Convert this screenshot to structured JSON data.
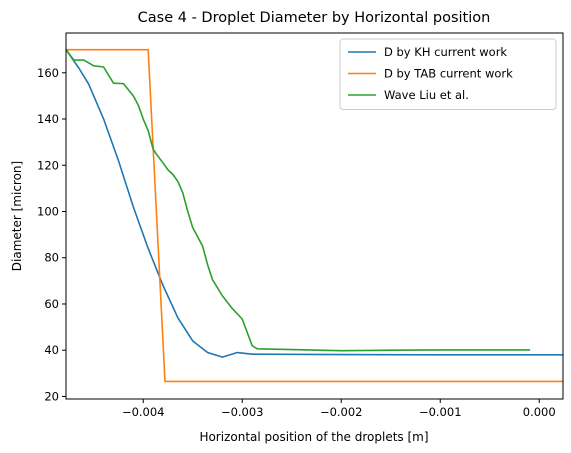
{
  "chart_data": {
    "type": "line",
    "title": "Case 4 - Droplet Diameter by Horizontal position",
    "xlabel": "Horizontal position of the droplets [m]",
    "ylabel": "Diameter [micron]",
    "xlim": [
      -0.00478,
      0.00024
    ],
    "ylim": [
      18.9,
      177.2
    ],
    "xticks": [
      {
        "value": -0.004,
        "label": "−0.004"
      },
      {
        "value": -0.003,
        "label": "−0.003"
      },
      {
        "value": -0.002,
        "label": "−0.002"
      },
      {
        "value": -0.001,
        "label": "−0.001"
      },
      {
        "value": 0.0,
        "label": "0.000"
      }
    ],
    "yticks": [
      {
        "value": 20,
        "label": "20"
      },
      {
        "value": 40,
        "label": "40"
      },
      {
        "value": 60,
        "label": "60"
      },
      {
        "value": 80,
        "label": "80"
      },
      {
        "value": 100,
        "label": "100"
      },
      {
        "value": 120,
        "label": "120"
      },
      {
        "value": 140,
        "label": "140"
      },
      {
        "value": 160,
        "label": "160"
      }
    ],
    "grid": false,
    "legend_position": "top-right",
    "series": [
      {
        "name": "D by KH current work",
        "color": "#1f77b4",
        "points": [
          [
            -0.00478,
            170
          ],
          [
            -0.00465,
            162
          ],
          [
            -0.00455,
            155
          ],
          [
            -0.0044,
            140
          ],
          [
            -0.00425,
            122
          ],
          [
            -0.0041,
            102
          ],
          [
            -0.00395,
            84
          ],
          [
            -0.0038,
            68
          ],
          [
            -0.00365,
            54
          ],
          [
            -0.0035,
            44
          ],
          [
            -0.00335,
            39
          ],
          [
            -0.0032,
            37
          ],
          [
            -0.00305,
            39
          ],
          [
            -0.0029,
            38.3
          ],
          [
            -0.002,
            38.1
          ],
          [
            -0.001,
            38.0
          ],
          [
            0.00024,
            38.0
          ]
        ]
      },
      {
        "name": "D by TAB current work",
        "color": "#ff7f0e",
        "points": [
          [
            -0.00478,
            170
          ],
          [
            -0.00395,
            170
          ],
          [
            -0.00378,
            26.5
          ],
          [
            0.00024,
            26.5
          ]
        ]
      },
      {
        "name": "Wave Liu et al.",
        "color": "#2ca02c",
        "points": [
          [
            -0.00478,
            170
          ],
          [
            -0.0047,
            165.5
          ],
          [
            -0.0046,
            165.5
          ],
          [
            -0.0045,
            163
          ],
          [
            -0.0044,
            162.5
          ],
          [
            -0.0043,
            155.5
          ],
          [
            -0.0042,
            155.3
          ],
          [
            -0.0041,
            150
          ],
          [
            -0.00405,
            146
          ],
          [
            -0.004,
            140
          ],
          [
            -0.00395,
            135
          ],
          [
            -0.0039,
            127
          ],
          [
            -0.00387,
            125
          ],
          [
            -0.0038,
            121
          ],
          [
            -0.00375,
            118
          ],
          [
            -0.0037,
            116
          ],
          [
            -0.00365,
            113
          ],
          [
            -0.0036,
            108
          ],
          [
            -0.00355,
            100
          ],
          [
            -0.0035,
            93
          ],
          [
            -0.0034,
            85
          ],
          [
            -0.00335,
            77
          ],
          [
            -0.0033,
            70.5
          ],
          [
            -0.0032,
            63.5
          ],
          [
            -0.0031,
            58
          ],
          [
            -0.003,
            53.5
          ],
          [
            -0.0029,
            42
          ],
          [
            -0.00285,
            40.6
          ],
          [
            -0.0025,
            40.3
          ],
          [
            -0.002,
            39.8
          ],
          [
            -0.0015,
            40.0
          ],
          [
            -0.001,
            40.1
          ],
          [
            -0.0005,
            40.1
          ],
          [
            -0.0001,
            40.1
          ]
        ]
      }
    ]
  }
}
